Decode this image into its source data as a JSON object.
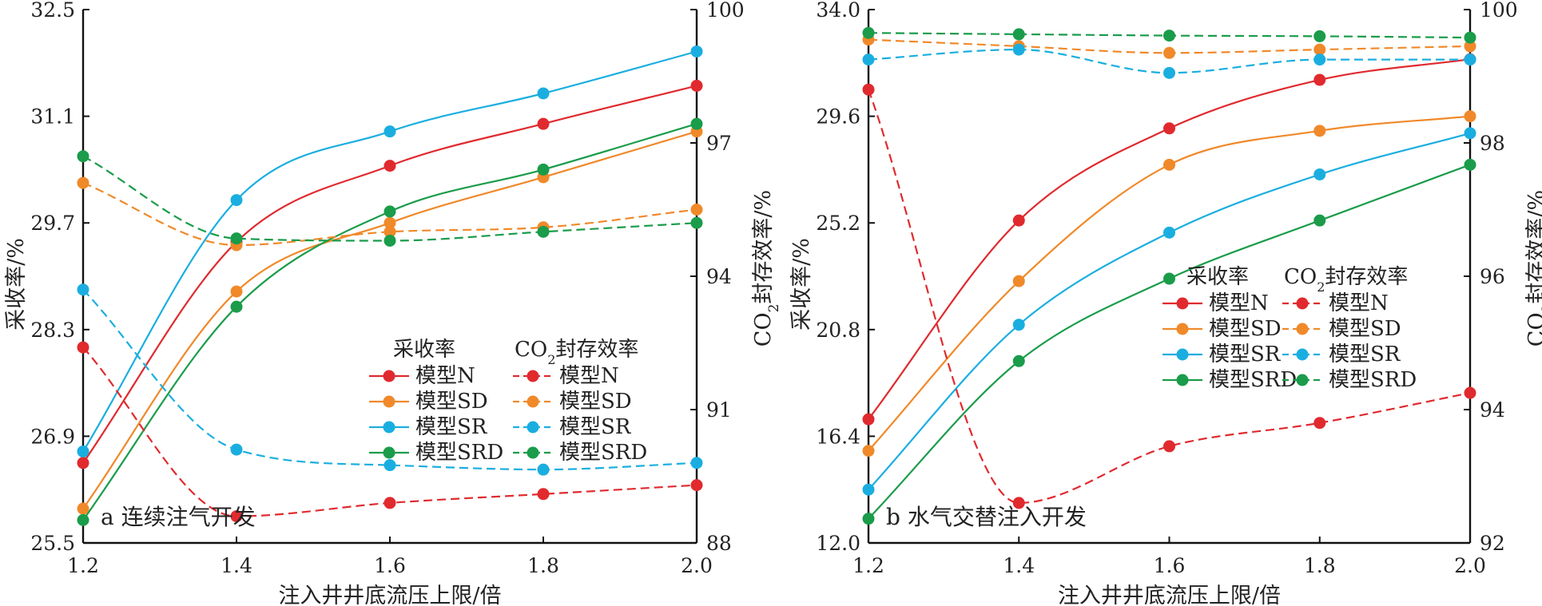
{
  "series_styles": [
    {
      "name": "模型N",
      "color": "#e02a2e"
    },
    {
      "name": "模型SD",
      "color": "#f0892a"
    },
    {
      "name": "模型SR",
      "color": "#1aaee0"
    },
    {
      "name": "模型SRD",
      "color": "#1a9c4a"
    }
  ],
  "chart_data": [
    {
      "type": "line",
      "panel_label": "a 连续注气开发",
      "xlabel": "注入井井底流压上限/倍",
      "ylabel": "采收率/%",
      "y2label": "CO2封存效率/%",
      "legend": {
        "recovery_title": "采收率",
        "storage_title": "CO2封存效率",
        "placement": "center-right"
      },
      "x": [
        1.2,
        1.4,
        1.6,
        1.8,
        2.0
      ],
      "x_ticks": [
        "1.2",
        "1.4",
        "1.6",
        "1.8",
        "2.0"
      ],
      "ylim": [
        25.5,
        32.5
      ],
      "y_ticks": [
        "25.5",
        "26.9",
        "28.3",
        "29.7",
        "31.1",
        "32.5"
      ],
      "y2lim": [
        88,
        100
      ],
      "y2_ticks": [
        "88",
        "91",
        "94",
        "97",
        "100"
      ],
      "series": [
        {
          "name": "模型N",
          "kind": "recovery",
          "values": [
            26.55,
            29.45,
            30.45,
            31.0,
            31.5
          ]
        },
        {
          "name": "模型SD",
          "kind": "recovery",
          "values": [
            25.95,
            28.8,
            29.7,
            30.3,
            30.9
          ]
        },
        {
          "name": "模型SR",
          "kind": "recovery",
          "values": [
            26.7,
            30.0,
            30.9,
            31.4,
            31.95
          ]
        },
        {
          "name": "模型SRD",
          "kind": "recovery",
          "values": [
            25.8,
            28.6,
            29.85,
            30.4,
            31.0
          ]
        },
        {
          "name": "模型N",
          "kind": "storage",
          "values": [
            92.4,
            88.6,
            88.9,
            89.1,
            89.3
          ]
        },
        {
          "name": "模型SD",
          "kind": "storage",
          "values": [
            96.1,
            94.7,
            95.0,
            95.1,
            95.5
          ]
        },
        {
          "name": "模型SR",
          "kind": "storage",
          "values": [
            93.7,
            90.1,
            89.75,
            89.65,
            89.8
          ]
        },
        {
          "name": "模型SRD",
          "kind": "storage",
          "values": [
            96.7,
            94.85,
            94.8,
            95.0,
            95.2
          ]
        }
      ]
    },
    {
      "type": "line",
      "panel_label": "b 水气交替注入开发",
      "xlabel": "注入井井底流压上限/倍",
      "ylabel": "采收率/%",
      "y2label": "CO2封存效率/%",
      "legend": {
        "recovery_title": "采收率",
        "storage_title": "CO2封存效率",
        "placement": "center-right"
      },
      "x": [
        1.2,
        1.4,
        1.6,
        1.8,
        2.0
      ],
      "x_ticks": [
        "1.2",
        "1.4",
        "1.6",
        "1.8",
        "2.0"
      ],
      "ylim": [
        12.0,
        34.0
      ],
      "y_ticks": [
        "12.0",
        "16.4",
        "20.8",
        "25.2",
        "29.6",
        "34.0"
      ],
      "y2lim": [
        92,
        100
      ],
      "y2_ticks": [
        "92",
        "94",
        "96",
        "98",
        "100"
      ],
      "series": [
        {
          "name": "模型N",
          "kind": "recovery",
          "values": [
            17.1,
            25.3,
            29.1,
            31.1,
            31.95
          ]
        },
        {
          "name": "模型SD",
          "kind": "recovery",
          "values": [
            15.8,
            22.8,
            27.6,
            29.0,
            29.6
          ]
        },
        {
          "name": "模型SR",
          "kind": "recovery",
          "values": [
            14.2,
            21.0,
            24.8,
            27.2,
            28.9
          ]
        },
        {
          "name": "模型SRD",
          "kind": "recovery",
          "values": [
            13.0,
            19.5,
            22.9,
            25.3,
            27.6
          ]
        },
        {
          "name": "模型N",
          "kind": "storage",
          "values": [
            98.8,
            92.6,
            93.45,
            93.8,
            94.25
          ]
        },
        {
          "name": "模型SD",
          "kind": "storage",
          "values": [
            99.55,
            99.45,
            99.35,
            99.4,
            99.45
          ]
        },
        {
          "name": "模型SR",
          "kind": "storage",
          "values": [
            99.25,
            99.4,
            99.05,
            99.25,
            99.25
          ]
        },
        {
          "name": "模型SRD",
          "kind": "storage",
          "values": [
            99.65,
            99.63,
            99.61,
            99.6,
            99.58
          ]
        }
      ]
    }
  ]
}
